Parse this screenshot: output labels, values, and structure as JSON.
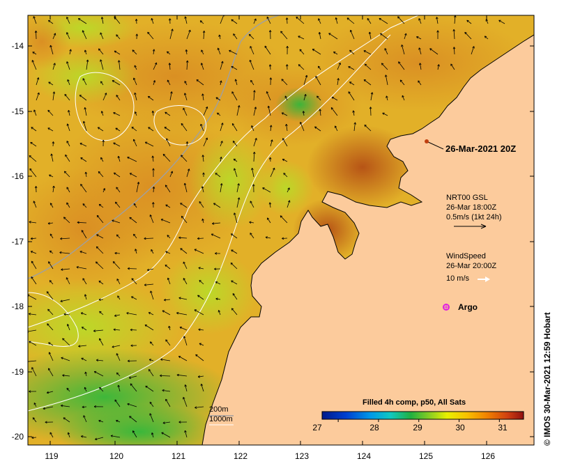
{
  "map": {
    "xticks": [
      "119",
      "120",
      "121",
      "122",
      "123",
      "124",
      "125",
      "126"
    ],
    "yticks": [
      "-14",
      "-15",
      "-16",
      "-17",
      "-18",
      "-19",
      "-20"
    ],
    "colors": {
      "land": "#fccb9c",
      "coast": "#000000",
      "sst_warm": "#c0531a",
      "sst_mid": "#e8a020",
      "sst_cool": "#c8e02a",
      "sst_cold": "#1fae3a",
      "contour": "#ffffff",
      "bathy": "#a0a0a0"
    }
  },
  "timestamp_label": "26-Mar-2021 20Z",
  "current_legend": {
    "line1": "NRT00 GSL",
    "line2": "26-Mar 18:00Z",
    "line3": "0.5m/s (1kt 24h)"
  },
  "wind_legend": {
    "line1": "WindSpeed",
    "line2": "26-Mar 20:00Z",
    "line3": "10 m/s"
  },
  "argo_label": "Argo",
  "depth_legend": {
    "line1": "200m",
    "line2": "1000m"
  },
  "colorbar": {
    "title": "Filled 4h comp, p50, All Sats",
    "ticks": [
      "27",
      "28",
      "29",
      "30",
      "31"
    ],
    "range": [
      26.6,
      31.6
    ]
  },
  "credit": "IMOS 30-Mar-2021 12:59 Hobart"
}
